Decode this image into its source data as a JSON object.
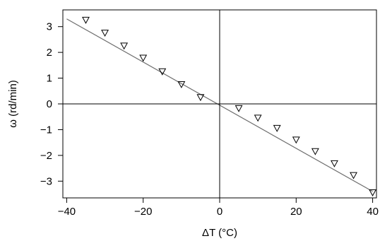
{
  "chart_data": {
    "type": "scatter",
    "title": "",
    "xlabel": "ΔT (°C)",
    "ylabel": "ω (rd/min)",
    "xlim": [
      -41,
      41
    ],
    "ylim": [
      -3.65,
      3.65
    ],
    "x_ticks": [
      -40,
      -20,
      0,
      20,
      40
    ],
    "x_tick_labels": [
      "−40",
      "−20",
      "0",
      "20",
      "40"
    ],
    "y_ticks": [
      -3,
      -2,
      -1,
      0,
      1,
      2,
      3
    ],
    "y_tick_labels": [
      "−3",
      "−2",
      "−1",
      "0",
      "1",
      "2",
      "3"
    ],
    "grid": false,
    "reference_lines": {
      "x": 0,
      "y": 0
    },
    "marker": "open-triangle-down",
    "series": [
      {
        "x": [
          -35,
          -30,
          -25,
          -20,
          -15,
          -10,
          -5,
          5,
          10,
          15,
          20,
          25,
          30,
          35,
          40
        ],
        "y": [
          3.25,
          2.75,
          2.25,
          1.78,
          1.25,
          0.75,
          0.25,
          -0.18,
          -0.55,
          -0.95,
          -1.4,
          -1.85,
          -2.32,
          -2.78,
          -3.45
        ]
      }
    ],
    "fit_line": {
      "x": [
        -40,
        40
      ],
      "y": [
        3.3,
        -3.4
      ]
    },
    "colors": {
      "marker": "#000000",
      "fit_line": "#6e6e6e",
      "axes": "#000000"
    }
  }
}
